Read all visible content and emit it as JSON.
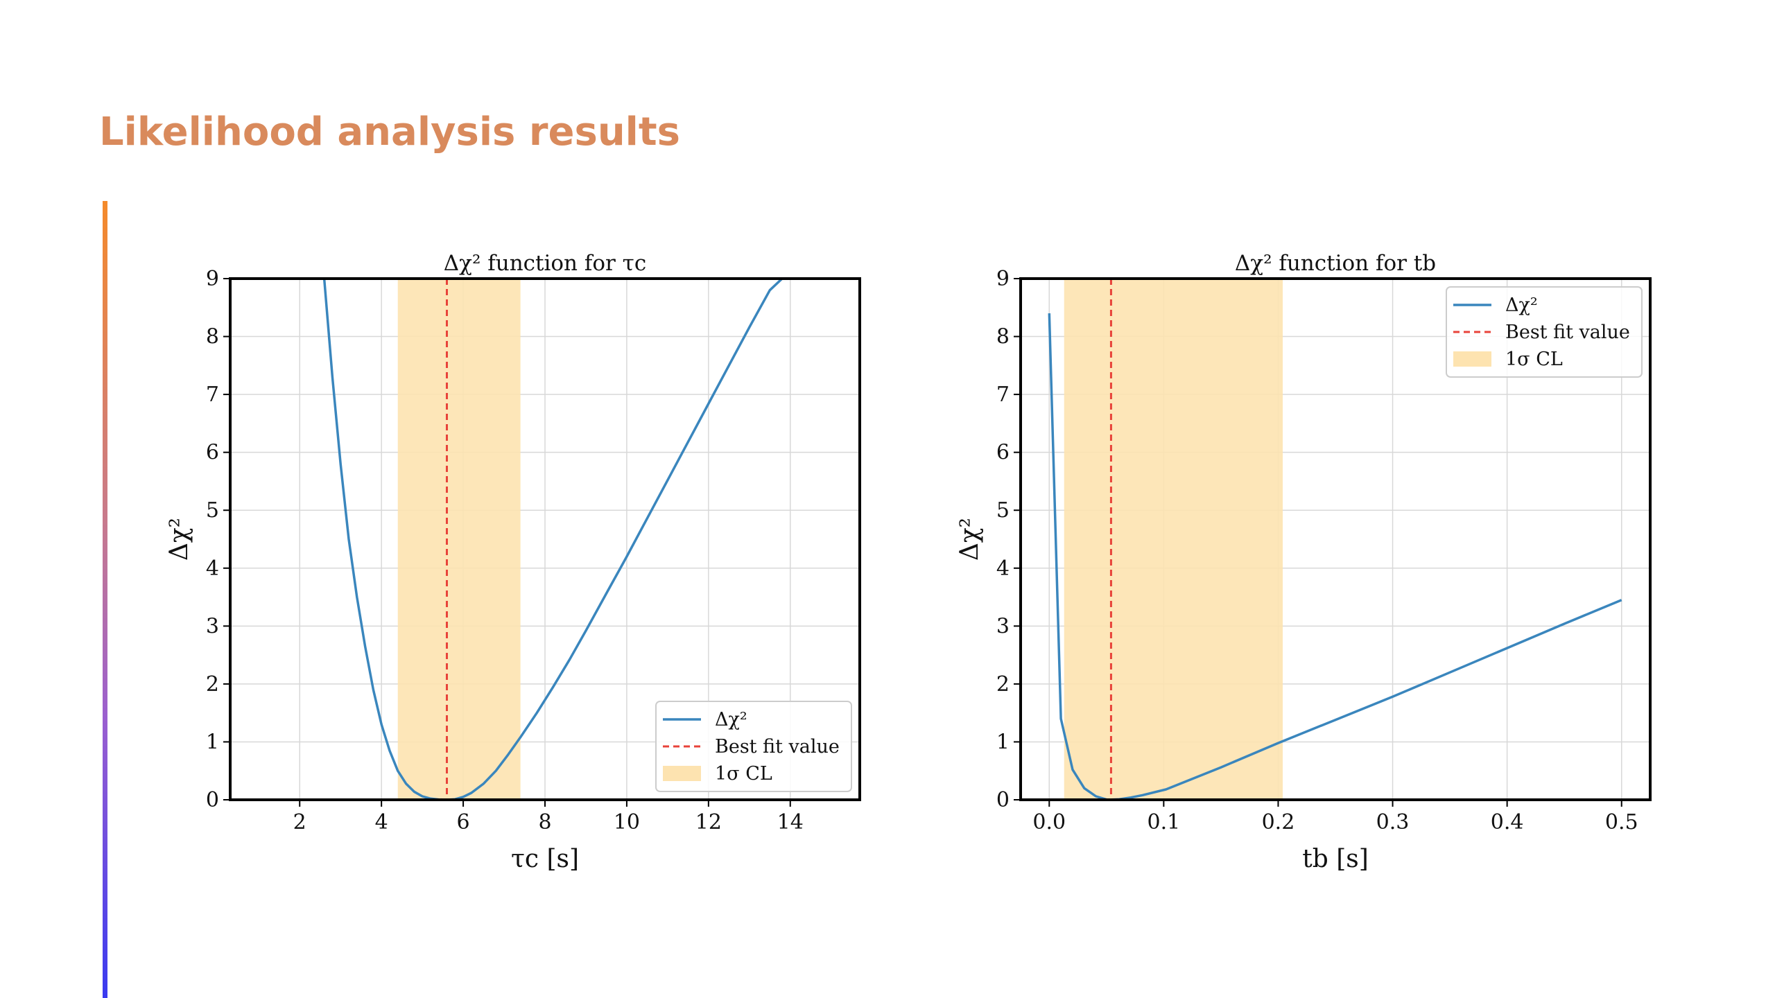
{
  "slide": {
    "title": "Likelihood analysis results"
  },
  "colors": {
    "title": "#D98A5C",
    "curve": "#3A86BD",
    "best_fit": "#E8433A",
    "band": "#FDE3B0",
    "grid": "#D8D8D8"
  },
  "chart_data": [
    {
      "type": "line",
      "title": "Δχ² function for τc",
      "xlabel": "τc [s]",
      "ylabel": "Δχ²",
      "xlim": [
        0.3,
        15.7
      ],
      "ylim": [
        0,
        9
      ],
      "xticks": [
        2,
        4,
        6,
        8,
        10,
        12,
        14
      ],
      "xtick_labels": [
        "2",
        "4",
        "6",
        "8",
        "10",
        "12",
        "14"
      ],
      "yticks": [
        0,
        1,
        2,
        3,
        4,
        5,
        6,
        7,
        8,
        9
      ],
      "ytick_labels": [
        "0",
        "1",
        "2",
        "3",
        "4",
        "5",
        "6",
        "7",
        "8",
        "9"
      ],
      "grid": true,
      "legend_position": "lower-right",
      "series": [
        {
          "name": "Δχ²",
          "x": [
            2.6,
            2.8,
            3.0,
            3.2,
            3.4,
            3.6,
            3.8,
            4.0,
            4.2,
            4.4,
            4.6,
            4.8,
            5.0,
            5.2,
            5.4,
            5.6,
            5.8,
            6.0,
            6.2,
            6.5,
            6.8,
            7.1,
            7.4,
            7.8,
            8.2,
            8.6,
            9.0,
            9.5,
            10.0,
            10.5,
            11.0,
            11.5,
            12.0,
            12.5,
            13.0,
            13.5,
            13.8
          ],
          "y": [
            9.0,
            7.3,
            5.8,
            4.5,
            3.5,
            2.65,
            1.9,
            1.3,
            0.85,
            0.5,
            0.28,
            0.14,
            0.06,
            0.02,
            0.005,
            0.0,
            0.01,
            0.05,
            0.12,
            0.28,
            0.5,
            0.78,
            1.08,
            1.5,
            1.95,
            2.42,
            2.92,
            3.56,
            4.2,
            4.86,
            5.52,
            6.18,
            6.84,
            7.5,
            8.16,
            8.8,
            9.0
          ]
        }
      ],
      "best_fit": 5.6,
      "cl_band": [
        4.4,
        7.4
      ],
      "legend": [
        "Δχ²",
        "Best fit value",
        "1σ CL"
      ]
    },
    {
      "type": "line",
      "title": "Δχ² function for tb",
      "xlabel": "tb [s]",
      "ylabel": "Δχ²",
      "xlim": [
        -0.025,
        0.525
      ],
      "ylim": [
        0,
        9
      ],
      "xticks": [
        0.0,
        0.1,
        0.2,
        0.3,
        0.4,
        0.5
      ],
      "xtick_labels": [
        "0.0",
        "0.1",
        "0.2",
        "0.3",
        "0.4",
        "0.5"
      ],
      "yticks": [
        0,
        1,
        2,
        3,
        4,
        5,
        6,
        7,
        8,
        9
      ],
      "ytick_labels": [
        "0",
        "1",
        "2",
        "3",
        "4",
        "5",
        "6",
        "7",
        "8",
        "9"
      ],
      "grid": true,
      "legend_position": "upper-right",
      "series": [
        {
          "name": "Δχ²",
          "x": [
            0.0,
            0.0102,
            0.0204,
            0.0306,
            0.0408,
            0.051,
            0.0612,
            0.0714,
            0.0816,
            0.102,
            0.15,
            0.2,
            0.25,
            0.3,
            0.35,
            0.4,
            0.45,
            0.5
          ],
          "y": [
            8.4,
            1.4,
            0.52,
            0.2,
            0.06,
            0.0,
            0.01,
            0.04,
            0.08,
            0.18,
            0.56,
            0.98,
            1.38,
            1.78,
            2.2,
            2.62,
            3.04,
            3.45
          ]
        }
      ],
      "best_fit": 0.054,
      "cl_band": [
        0.013,
        0.204
      ],
      "legend": [
        "Δχ²",
        "Best fit value",
        "1σ CL"
      ]
    }
  ]
}
